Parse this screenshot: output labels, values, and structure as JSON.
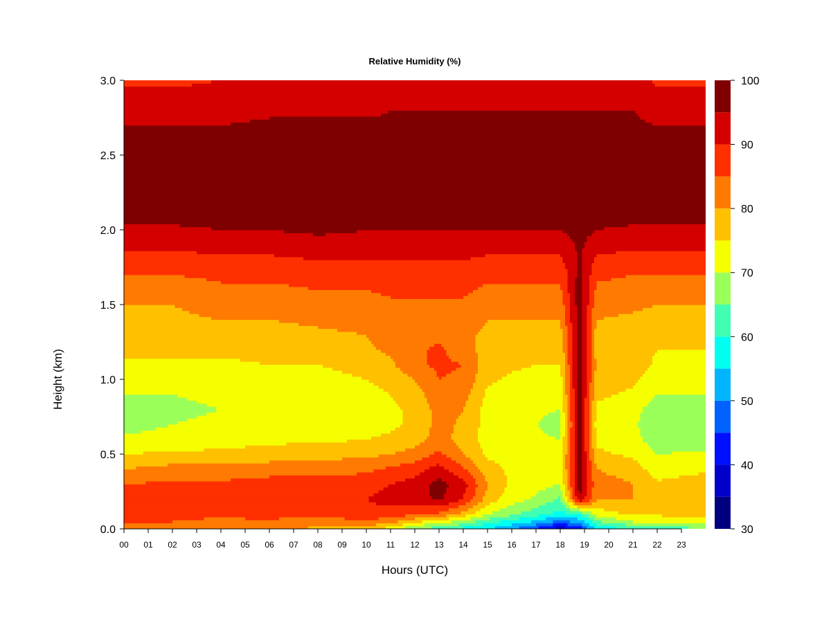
{
  "chart_data": {
    "type": "heatmap",
    "title": "Relative Humidity (%)",
    "xlabel": "Hours (UTC)",
    "ylabel": "Height (km)",
    "x_ticks": [
      "00",
      "01",
      "02",
      "03",
      "04",
      "05",
      "06",
      "07",
      "08",
      "09",
      "10",
      "11",
      "12",
      "13",
      "14",
      "15",
      "16",
      "17",
      "18",
      "19",
      "20",
      "21",
      "22",
      "23"
    ],
    "y_ticks": [
      "0.0",
      "0.5",
      "1.0",
      "1.5",
      "2.0",
      "2.5",
      "3.0"
    ],
    "xlim": [
      0,
      24
    ],
    "ylim": [
      0,
      3
    ],
    "colorbar": {
      "levels": [
        30,
        35,
        40,
        45,
        50,
        55,
        60,
        65,
        70,
        75,
        80,
        85,
        90,
        95,
        100
      ],
      "tick_labels": [
        "30",
        "40",
        "50",
        "60",
        "70",
        "80",
        "90",
        "100"
      ],
      "colors": [
        "#00007F",
        "#0000C8",
        "#0010FF",
        "#0062FF",
        "#00B4FF",
        "#00FFF0",
        "#41FFB2",
        "#9BFF5A",
        "#F5FF00",
        "#FFC000",
        "#FF7A00",
        "#FF2F00",
        "#D40000",
        "#7F0000"
      ]
    },
    "grid": false,
    "heights_km": [
      0.0,
      0.05,
      0.1,
      0.2,
      0.3,
      0.4,
      0.5,
      0.6,
      0.7,
      0.8,
      0.9,
      1.0,
      1.1,
      1.2,
      1.3,
      1.4,
      1.5,
      1.6,
      1.7,
      1.8,
      1.9,
      2.0,
      2.1,
      2.2,
      2.3,
      2.4,
      2.5,
      2.6,
      2.7,
      2.8,
      2.9,
      3.0
    ],
    "profile_hours": [
      0,
      2,
      4,
      6,
      8,
      10,
      11,
      12,
      13,
      14,
      15,
      16,
      17,
      18,
      18.8,
      19.5,
      21,
      22,
      23.9
    ],
    "rh_profiles": [
      [
        82,
        85,
        86,
        88,
        85,
        80,
        75,
        71,
        68,
        68,
        70,
        72,
        74,
        76,
        77,
        78,
        80,
        82,
        85,
        88,
        91,
        94,
        97,
        98,
        98,
        98,
        97,
        96,
        95,
        93,
        91,
        89
      ],
      [
        82,
        85,
        86,
        88,
        86,
        82,
        76,
        72,
        70,
        69,
        70,
        72,
        74,
        76,
        77,
        79,
        80,
        82,
        85,
        88,
        91,
        94,
        97,
        98,
        98,
        98,
        97,
        96,
        95,
        93,
        91,
        89
      ],
      [
        80,
        84,
        86,
        89,
        86,
        82,
        76,
        73,
        71,
        70,
        71,
        72,
        74,
        76,
        78,
        80,
        82,
        84,
        86,
        89,
        92,
        95,
        97,
        98,
        98,
        98,
        97,
        96,
        95,
        93,
        92,
        90
      ],
      [
        80,
        84,
        87,
        90,
        87,
        83,
        77,
        74,
        72,
        71,
        72,
        73,
        75,
        77,
        78,
        80,
        82,
        84,
        86,
        89,
        92,
        95,
        97,
        98,
        98,
        98,
        97,
        97,
        96,
        94,
        93,
        91
      ],
      [
        79,
        83,
        86,
        89,
        87,
        83,
        78,
        74,
        72,
        71,
        71,
        73,
        75,
        77,
        79,
        81,
        83,
        85,
        87,
        90,
        93,
        96,
        97,
        98,
        98,
        98,
        98,
        97,
        96,
        94,
        93,
        92
      ],
      [
        78,
        84,
        88,
        90,
        88,
        84,
        79,
        75,
        73,
        72,
        73,
        75,
        77,
        79,
        80,
        82,
        83,
        85,
        87,
        90,
        93,
        95,
        97,
        98,
        98,
        98,
        98,
        97,
        96,
        94,
        93,
        92
      ],
      [
        72,
        82,
        88,
        92,
        90,
        86,
        80,
        76,
        74,
        74,
        75,
        77,
        79,
        81,
        82,
        83,
        84,
        86,
        88,
        90,
        93,
        95,
        97,
        98,
        98,
        98,
        98,
        97,
        96,
        95,
        94,
        93
      ],
      [
        65,
        76,
        86,
        93,
        92,
        88,
        82,
        78,
        76,
        76,
        78,
        80,
        84,
        84,
        83,
        83,
        84,
        86,
        88,
        90,
        93,
        95,
        97,
        98,
        98,
        98,
        98,
        97,
        96,
        95,
        94,
        93
      ],
      [
        62,
        72,
        84,
        96,
        97,
        92,
        86,
        82,
        82,
        82,
        83,
        85,
        86,
        86,
        84,
        84,
        84,
        86,
        88,
        90,
        93,
        95,
        97,
        98,
        98,
        98,
        98,
        97,
        96,
        95,
        94,
        93
      ],
      [
        58,
        68,
        78,
        90,
        92,
        86,
        80,
        78,
        79,
        80,
        82,
        84,
        85,
        82,
        81,
        82,
        84,
        86,
        88,
        90,
        93,
        95,
        97,
        98,
        98,
        98,
        98,
        97,
        96,
        95,
        94,
        93
      ],
      [
        55,
        62,
        70,
        78,
        80,
        77,
        74,
        73,
        73,
        73,
        74,
        76,
        77,
        78,
        79,
        80,
        82,
        84,
        86,
        89,
        92,
        95,
        97,
        98,
        98,
        98,
        98,
        97,
        96,
        95,
        94,
        93
      ],
      [
        50,
        58,
        66,
        72,
        74,
        74,
        73,
        72,
        72,
        72,
        73,
        74,
        76,
        77,
        78,
        80,
        82,
        84,
        86,
        89,
        92,
        95,
        97,
        98,
        98,
        98,
        98,
        97,
        96,
        95,
        94,
        93
      ],
      [
        44,
        54,
        62,
        69,
        72,
        73,
        72,
        71,
        70,
        71,
        72,
        73,
        75,
        76,
        78,
        80,
        82,
        84,
        86,
        89,
        92,
        95,
        97,
        98,
        98,
        98,
        98,
        97,
        96,
        95,
        94,
        93
      ],
      [
        36,
        48,
        58,
        64,
        70,
        72,
        72,
        70,
        68,
        70,
        72,
        73,
        75,
        76,
        78,
        80,
        82,
        84,
        86,
        89,
        92,
        95,
        97,
        98,
        98,
        98,
        98,
        97,
        96,
        95,
        94,
        93
      ],
      [
        42,
        52,
        60,
        95,
        98,
        98,
        98,
        98,
        98,
        98,
        98,
        98,
        98,
        98,
        98,
        98,
        98,
        98,
        97,
        96,
        96,
        97,
        98,
        98,
        98,
        98,
        98,
        97,
        96,
        95,
        94,
        93
      ],
      [
        56,
        64,
        72,
        80,
        82,
        80,
        76,
        74,
        73,
        74,
        76,
        78,
        79,
        78,
        78,
        80,
        82,
        84,
        86,
        89,
        92,
        95,
        97,
        98,
        98,
        98,
        98,
        97,
        96,
        95,
        94,
        93
      ],
      [
        60,
        70,
        76,
        80,
        80,
        78,
        74,
        72,
        71,
        72,
        74,
        76,
        78,
        77,
        77,
        79,
        81,
        83,
        85,
        88,
        91,
        94,
        97,
        98,
        98,
        98,
        98,
        97,
        96,
        95,
        94,
        93
      ],
      [
        62,
        70,
        76,
        78,
        76,
        72,
        70,
        67,
        66,
        67,
        70,
        72,
        74,
        75,
        76,
        78,
        80,
        82,
        85,
        88,
        91,
        94,
        97,
        98,
        98,
        98,
        97,
        96,
        95,
        93,
        91,
        89
      ],
      [
        64,
        72,
        78,
        80,
        78,
        74,
        71,
        67,
        66,
        67,
        70,
        72,
        74,
        75,
        76,
        78,
        80,
        82,
        85,
        88,
        91,
        94,
        97,
        98,
        98,
        98,
        97,
        96,
        95,
        93,
        91,
        89
      ]
    ]
  }
}
